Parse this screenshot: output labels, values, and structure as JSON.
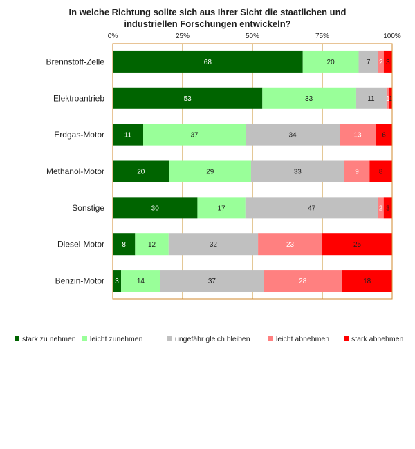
{
  "chart_data": {
    "type": "bar",
    "orientation": "horizontal",
    "stacked": "percent",
    "title_lines": [
      "In welche Richtung sollte sich aus Ihrer Sicht die staatlichen und",
      "industriellen Forschungen entwickeln?"
    ],
    "xaxis": {
      "ticks": [
        "0%",
        "25%",
        "50%",
        "75%",
        "100%"
      ],
      "range": [
        0,
        100
      ],
      "position": "top",
      "grid": true
    },
    "categories": [
      "Brennstoff-Zelle",
      "Elektroantrieb",
      "Erdgas-Motor",
      "Methanol-Motor",
      "Sonstige",
      "Diesel-Motor",
      "Benzin-Motor"
    ],
    "series": [
      {
        "name": "stark zu nehmen",
        "color": "#006400",
        "label_color": "#ffffff",
        "values": [
          68,
          53,
          11,
          20,
          30,
          8,
          3
        ]
      },
      {
        "name": "leicht zunehmen",
        "color": "#99ff99",
        "label_color": "#1f1f1f",
        "values": [
          20,
          33,
          37,
          29,
          17,
          12,
          14
        ]
      },
      {
        "name": "ungefähr gleich bleiben",
        "color": "#c0c0c0",
        "label_color": "#1f1f1f",
        "values": [
          7,
          11,
          34,
          33,
          47,
          32,
          37
        ]
      },
      {
        "name": "leicht abnehmen",
        "color": "#ff8080",
        "label_color": "#ffffff",
        "values": [
          2,
          1,
          13,
          9,
          2,
          23,
          28
        ]
      },
      {
        "name": "stark abnehmen",
        "color": "#ff0000",
        "label_color": "#1f1f1f",
        "values": [
          3,
          1,
          6,
          8,
          3,
          25,
          18
        ]
      }
    ],
    "legend": "bottom",
    "plot_border_color": "#d08a2c",
    "grid_color": "#c8922c"
  }
}
